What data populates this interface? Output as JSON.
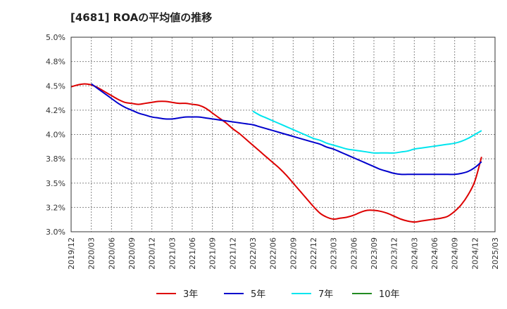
{
  "chart_data": {
    "type": "line",
    "title": "[4681]  ROAの平均値の推移",
    "ylim": [
      3.0,
      5.0
    ],
    "y_ticks": [
      "3.0%",
      "3.2%",
      "3.5%",
      "3.8%",
      "4.0%",
      "4.2%",
      "4.5%",
      "4.8%",
      "5.0%"
    ],
    "y_tick_values": [
      3.0,
      3.25,
      3.5,
      3.75,
      4.0,
      4.25,
      4.5,
      4.75,
      5.0
    ],
    "x_ticks": [
      "2019/12",
      "2020/03",
      "2020/06",
      "2020/09",
      "2020/12",
      "2021/03",
      "2021/06",
      "2021/09",
      "2021/12",
      "2022/03",
      "2022/06",
      "2022/09",
      "2022/12",
      "2023/03",
      "2023/06",
      "2023/09",
      "2023/12",
      "2024/03",
      "2024/06",
      "2024/09",
      "2024/12",
      "2025/03"
    ],
    "grid": true,
    "legend_position": "bottom",
    "series": [
      {
        "name": "3年",
        "color": "#dd0000",
        "points": [
          [
            "2019/12",
            4.49
          ],
          [
            "2020/01",
            4.51
          ],
          [
            "2020/02",
            4.52
          ],
          [
            "2020/03",
            4.51
          ],
          [
            "2020/04",
            4.48
          ],
          [
            "2020/05",
            4.44
          ],
          [
            "2020/06",
            4.4
          ],
          [
            "2020/07",
            4.36
          ],
          [
            "2020/08",
            4.33
          ],
          [
            "2020/09",
            4.32
          ],
          [
            "2020/10",
            4.31
          ],
          [
            "2020/11",
            4.32
          ],
          [
            "2020/12",
            4.33
          ],
          [
            "2021/01",
            4.34
          ],
          [
            "2021/02",
            4.34
          ],
          [
            "2021/03",
            4.33
          ],
          [
            "2021/04",
            4.32
          ],
          [
            "2021/05",
            4.32
          ],
          [
            "2021/06",
            4.31
          ],
          [
            "2021/07",
            4.3
          ],
          [
            "2021/08",
            4.27
          ],
          [
            "2021/09",
            4.22
          ],
          [
            "2021/10",
            4.17
          ],
          [
            "2021/11",
            4.12
          ],
          [
            "2021/12",
            4.06
          ],
          [
            "2022/01",
            4.01
          ],
          [
            "2022/02",
            3.95
          ],
          [
            "2022/03",
            3.89
          ],
          [
            "2022/04",
            3.83
          ],
          [
            "2022/05",
            3.77
          ],
          [
            "2022/06",
            3.71
          ],
          [
            "2022/07",
            3.65
          ],
          [
            "2022/08",
            3.58
          ],
          [
            "2022/09",
            3.5
          ],
          [
            "2022/10",
            3.42
          ],
          [
            "2022/11",
            3.34
          ],
          [
            "2022/12",
            3.26
          ],
          [
            "2023/01",
            3.19
          ],
          [
            "2023/02",
            3.15
          ],
          [
            "2023/03",
            3.13
          ],
          [
            "2023/04",
            3.14
          ],
          [
            "2023/05",
            3.15
          ],
          [
            "2023/06",
            3.17
          ],
          [
            "2023/07",
            3.2
          ],
          [
            "2023/08",
            3.22
          ],
          [
            "2023/09",
            3.22
          ],
          [
            "2023/10",
            3.21
          ],
          [
            "2023/11",
            3.19
          ],
          [
            "2023/12",
            3.16
          ],
          [
            "2024/01",
            3.13
          ],
          [
            "2024/02",
            3.11
          ],
          [
            "2024/03",
            3.1
          ],
          [
            "2024/04",
            3.11
          ],
          [
            "2024/05",
            3.12
          ],
          [
            "2024/06",
            3.13
          ],
          [
            "2024/07",
            3.14
          ],
          [
            "2024/08",
            3.16
          ],
          [
            "2024/09",
            3.21
          ],
          [
            "2024/10",
            3.28
          ],
          [
            "2024/11",
            3.38
          ],
          [
            "2024/12",
            3.52
          ],
          [
            "2025/01",
            3.77
          ]
        ]
      },
      {
        "name": "5年",
        "color": "#0000cc",
        "points": [
          [
            "2020/03",
            4.52
          ],
          [
            "2020/04",
            4.47
          ],
          [
            "2020/05",
            4.42
          ],
          [
            "2020/06",
            4.37
          ],
          [
            "2020/07",
            4.32
          ],
          [
            "2020/08",
            4.28
          ],
          [
            "2020/09",
            4.25
          ],
          [
            "2020/10",
            4.22
          ],
          [
            "2020/11",
            4.2
          ],
          [
            "2020/12",
            4.18
          ],
          [
            "2021/01",
            4.17
          ],
          [
            "2021/02",
            4.16
          ],
          [
            "2021/03",
            4.16
          ],
          [
            "2021/04",
            4.17
          ],
          [
            "2021/05",
            4.18
          ],
          [
            "2021/06",
            4.18
          ],
          [
            "2021/07",
            4.18
          ],
          [
            "2021/08",
            4.17
          ],
          [
            "2021/09",
            4.16
          ],
          [
            "2021/10",
            4.15
          ],
          [
            "2021/11",
            4.14
          ],
          [
            "2021/12",
            4.13
          ],
          [
            "2022/01",
            4.12
          ],
          [
            "2022/02",
            4.11
          ],
          [
            "2022/03",
            4.1
          ],
          [
            "2022/04",
            4.08
          ],
          [
            "2022/05",
            4.06
          ],
          [
            "2022/06",
            4.04
          ],
          [
            "2022/07",
            4.02
          ],
          [
            "2022/08",
            4.0
          ],
          [
            "2022/09",
            3.98
          ],
          [
            "2022/10",
            3.96
          ],
          [
            "2022/11",
            3.94
          ],
          [
            "2022/12",
            3.92
          ],
          [
            "2023/01",
            3.9
          ],
          [
            "2023/02",
            3.87
          ],
          [
            "2023/03",
            3.85
          ],
          [
            "2023/04",
            3.82
          ],
          [
            "2023/05",
            3.79
          ],
          [
            "2023/06",
            3.76
          ],
          [
            "2023/07",
            3.73
          ],
          [
            "2023/08",
            3.7
          ],
          [
            "2023/09",
            3.67
          ],
          [
            "2023/10",
            3.64
          ],
          [
            "2023/11",
            3.62
          ],
          [
            "2023/12",
            3.6
          ],
          [
            "2024/01",
            3.59
          ],
          [
            "2024/02",
            3.59
          ],
          [
            "2024/03",
            3.59
          ],
          [
            "2024/04",
            3.59
          ],
          [
            "2024/05",
            3.59
          ],
          [
            "2024/06",
            3.59
          ],
          [
            "2024/07",
            3.59
          ],
          [
            "2024/08",
            3.59
          ],
          [
            "2024/09",
            3.59
          ],
          [
            "2024/10",
            3.6
          ],
          [
            "2024/11",
            3.62
          ],
          [
            "2024/12",
            3.66
          ],
          [
            "2025/01",
            3.72
          ]
        ]
      },
      {
        "name": "7年",
        "color": "#00e5ee",
        "points": [
          [
            "2022/03",
            4.24
          ],
          [
            "2022/04",
            4.2
          ],
          [
            "2022/05",
            4.17
          ],
          [
            "2022/06",
            4.14
          ],
          [
            "2022/07",
            4.11
          ],
          [
            "2022/08",
            4.08
          ],
          [
            "2022/09",
            4.05
          ],
          [
            "2022/10",
            4.02
          ],
          [
            "2022/11",
            3.99
          ],
          [
            "2022/12",
            3.96
          ],
          [
            "2023/01",
            3.94
          ],
          [
            "2023/02",
            3.91
          ],
          [
            "2023/03",
            3.89
          ],
          [
            "2023/04",
            3.87
          ],
          [
            "2023/05",
            3.85
          ],
          [
            "2023/06",
            3.84
          ],
          [
            "2023/07",
            3.83
          ],
          [
            "2023/08",
            3.82
          ],
          [
            "2023/09",
            3.81
          ],
          [
            "2023/10",
            3.81
          ],
          [
            "2023/11",
            3.81
          ],
          [
            "2023/12",
            3.81
          ],
          [
            "2024/01",
            3.82
          ],
          [
            "2024/02",
            3.83
          ],
          [
            "2024/03",
            3.85
          ],
          [
            "2024/04",
            3.86
          ],
          [
            "2024/05",
            3.87
          ],
          [
            "2024/06",
            3.88
          ],
          [
            "2024/07",
            3.89
          ],
          [
            "2024/08",
            3.9
          ],
          [
            "2024/09",
            3.91
          ],
          [
            "2024/10",
            3.93
          ],
          [
            "2024/11",
            3.96
          ],
          [
            "2024/12",
            4.0
          ],
          [
            "2025/01",
            4.04
          ]
        ]
      },
      {
        "name": "10年",
        "color": "#228b22",
        "points": []
      }
    ]
  }
}
